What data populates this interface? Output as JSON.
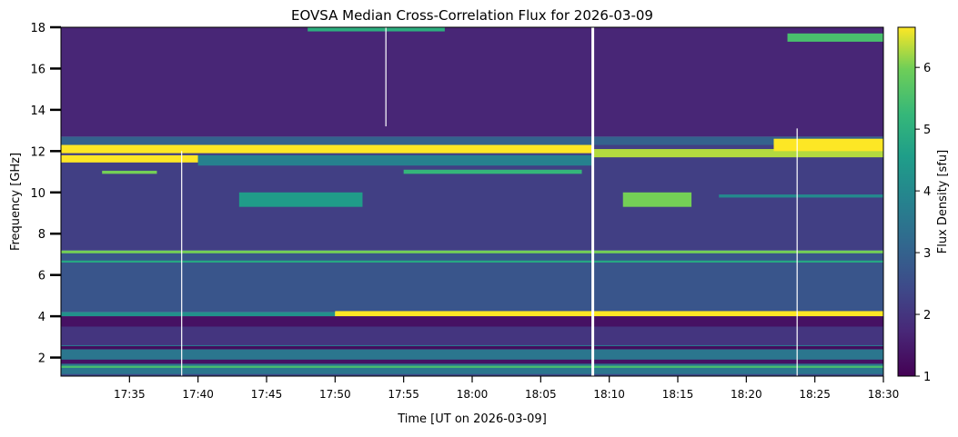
{
  "chart_data": {
    "type": "heatmap",
    "title": "EOVSA Median Cross-Correlation Flux for 2026-03-09",
    "xlabel": "Time [UT on 2026-03-09]",
    "ylabel": "Frequency [GHz]",
    "colorbar_label": "Flux Density [sfu]",
    "colormap": "viridis",
    "xlim_minutes": [
      1050,
      1110
    ],
    "ylim": [
      1.1,
      18.0
    ],
    "clim": [
      1,
      6.65
    ],
    "x_ticks": [
      {
        "value": 1055,
        "label": "17:35"
      },
      {
        "value": 1060,
        "label": "17:40"
      },
      {
        "value": 1065,
        "label": "17:45"
      },
      {
        "value": 1070,
        "label": "17:50"
      },
      {
        "value": 1075,
        "label": "17:55"
      },
      {
        "value": 1080,
        "label": "18:00"
      },
      {
        "value": 1085,
        "label": "18:05"
      },
      {
        "value": 1090,
        "label": "18:10"
      },
      {
        "value": 1095,
        "label": "18:15"
      },
      {
        "value": 1100,
        "label": "18:20"
      },
      {
        "value": 1105,
        "label": "18:25"
      },
      {
        "value": 1110,
        "label": "18:30"
      }
    ],
    "y_ticks": [
      {
        "value": 2,
        "label": "2"
      },
      {
        "value": 4,
        "label": "4"
      },
      {
        "value": 6,
        "label": "6"
      },
      {
        "value": 8,
        "label": "8"
      },
      {
        "value": 10,
        "label": "10"
      },
      {
        "value": 12,
        "label": "12"
      },
      {
        "value": 14,
        "label": "14"
      },
      {
        "value": 16,
        "label": "16"
      },
      {
        "value": 18,
        "label": "18"
      }
    ],
    "colorbar_ticks": [
      {
        "value": 1,
        "label": "1"
      },
      {
        "value": 2,
        "label": "2"
      },
      {
        "value": 3,
        "label": "3"
      },
      {
        "value": 4,
        "label": "4"
      },
      {
        "value": 5,
        "label": "5"
      },
      {
        "value": 6,
        "label": "6"
      }
    ],
    "features": [
      {
        "f": [
          12.7,
          18.0
        ],
        "t": [
          1050,
          1110
        ],
        "flux": 1.7
      },
      {
        "f": [
          7.2,
          12.7
        ],
        "t": [
          1050,
          1110
        ],
        "flux": 2.2
      },
      {
        "f": [
          4.2,
          7.2
        ],
        "t": [
          1050,
          1110
        ],
        "flux": 2.7
      },
      {
        "f": [
          1.1,
          4.0
        ],
        "t": [
          1050,
          1110
        ],
        "flux": 2.4
      },
      {
        "f": [
          12.3,
          12.7
        ],
        "t": [
          1050,
          1110
        ],
        "flux": 3.0
      },
      {
        "f": [
          11.9,
          12.3
        ],
        "t": [
          1050,
          1088.8
        ],
        "flux": 6.65
      },
      {
        "f": [
          11.45,
          11.8
        ],
        "t": [
          1050,
          1060
        ],
        "flux": 6.65
      },
      {
        "f": [
          11.3,
          11.8
        ],
        "t": [
          1060,
          1088.8
        ],
        "flux": 3.8
      },
      {
        "f": [
          11.7,
          12.1
        ],
        "t": [
          1088.8,
          1110
        ],
        "flux": 6.3
      },
      {
        "f": [
          12.0,
          12.6
        ],
        "t": [
          1102,
          1110
        ],
        "flux": 6.65
      },
      {
        "f": [
          10.9,
          11.05
        ],
        "t": [
          1053,
          1057
        ],
        "flux": 6.0
      },
      {
        "f": [
          10.9,
          11.1
        ],
        "t": [
          1075,
          1088
        ],
        "flux": 5.2
      },
      {
        "f": [
          17.8,
          18.0
        ],
        "t": [
          1068,
          1078
        ],
        "flux": 5.0
      },
      {
        "f": [
          17.3,
          17.7
        ],
        "t": [
          1103,
          1110
        ],
        "flux": 5.5
      },
      {
        "f": [
          9.3,
          10.0
        ],
        "t": [
          1063,
          1072
        ],
        "flux": 4.5
      },
      {
        "f": [
          9.3,
          10.0
        ],
        "t": [
          1091,
          1096
        ],
        "flux": 6.0
      },
      {
        "f": [
          9.75,
          9.9
        ],
        "t": [
          1098,
          1110
        ],
        "flux": 4.0
      },
      {
        "f": [
          7.05,
          7.18
        ],
        "t": [
          1050,
          1110
        ],
        "flux": 6.0
      },
      {
        "f": [
          6.6,
          6.7
        ],
        "t": [
          1050,
          1110
        ],
        "flux": 4.8
      },
      {
        "f": [
          4.0,
          4.2
        ],
        "t": [
          1050,
          1070
        ],
        "flux": 4.2
      },
      {
        "f": [
          4.0,
          4.25
        ],
        "t": [
          1070,
          1110
        ],
        "flux": 6.65
      },
      {
        "f": [
          3.5,
          4.0
        ],
        "t": [
          1050,
          1110
        ],
        "flux": 1.3
      },
      {
        "f": [
          2.6,
          3.5
        ],
        "t": [
          1050,
          1110
        ],
        "flux": 2.0
      },
      {
        "f": [
          1.2,
          2.6
        ],
        "t": [
          1050,
          1110
        ],
        "flux": 3.5
      },
      {
        "f": [
          1.7,
          1.9
        ],
        "t": [
          1050,
          1110
        ],
        "flux": 1.3
      },
      {
        "f": [
          2.4,
          2.55
        ],
        "t": [
          1050,
          1110
        ],
        "flux": 1.2
      },
      {
        "f": [
          1.5,
          1.6
        ],
        "t": [
          1050,
          1110
        ],
        "flux": 5.5
      }
    ],
    "gaps": [
      {
        "t": 1058.8,
        "f": [
          1.1,
          12.0
        ]
      },
      {
        "t": 1073.7,
        "f": [
          13.2,
          18.0
        ]
      },
      {
        "t": 1088.8,
        "f": [
          1.1,
          18.0
        ]
      },
      {
        "t": 1103.7,
        "f": [
          1.1,
          13.1
        ]
      }
    ]
  }
}
